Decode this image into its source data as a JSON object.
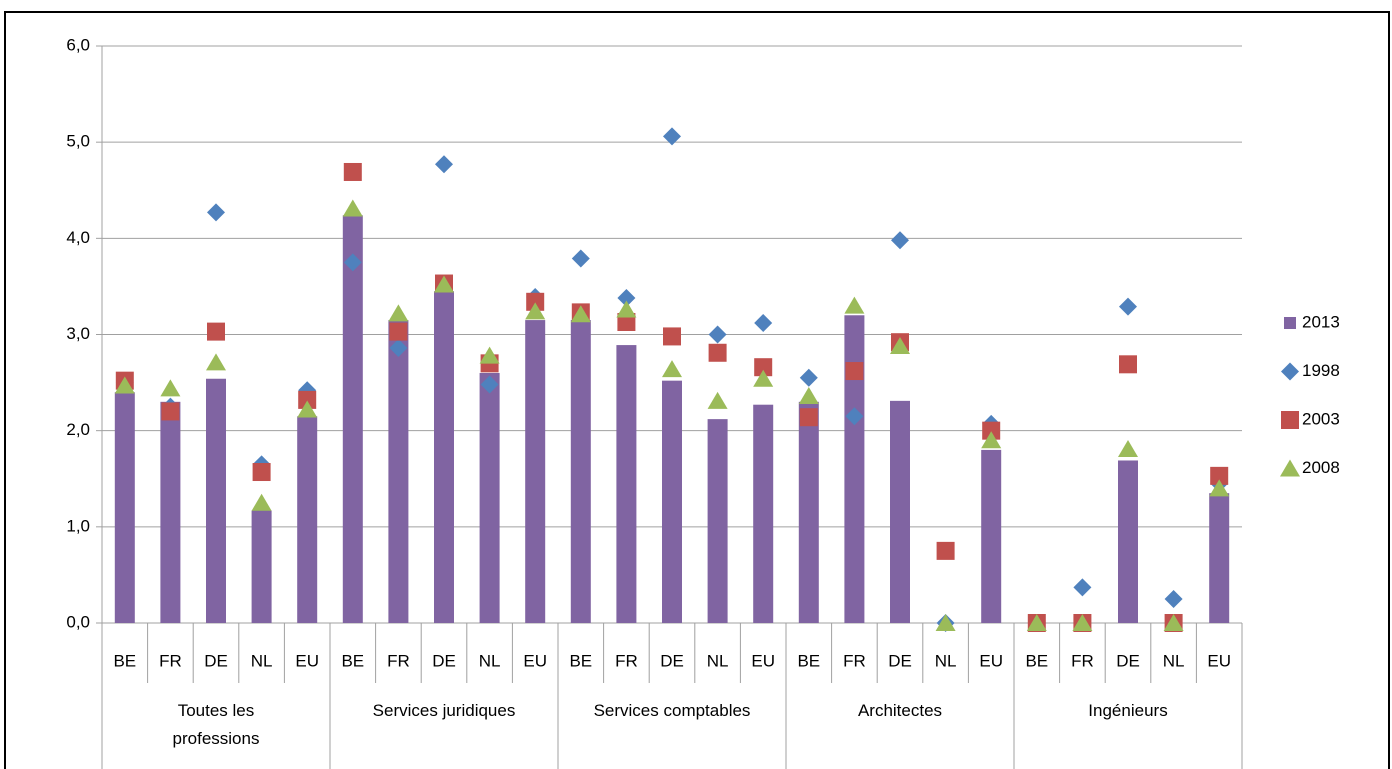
{
  "chart_data": {
    "type": "bar",
    "categories": [
      "BE",
      "FR",
      "DE",
      "NL",
      "EU",
      "BE",
      "FR",
      "DE",
      "NL",
      "EU",
      "BE",
      "FR",
      "DE",
      "NL",
      "EU",
      "BE",
      "FR",
      "DE",
      "NL",
      "EU",
      "BE",
      "FR",
      "DE",
      "NL",
      "EU"
    ],
    "groups": [
      {
        "name": "Toutes les professions",
        "size": 5
      },
      {
        "name": "Services juridiques",
        "size": 5
      },
      {
        "name": "Services comptables",
        "size": 5
      },
      {
        "name": "Architectes",
        "size": 5
      },
      {
        "name": "Ingénieurs",
        "size": 5
      }
    ],
    "series": [
      {
        "name": "2013",
        "type": "bar",
        "color": "#8064a2",
        "values": [
          2.4,
          2.3,
          2.54,
          1.17,
          2.15,
          4.24,
          3.15,
          3.45,
          2.6,
          3.15,
          3.15,
          2.89,
          2.52,
          2.12,
          2.27,
          2.3,
          3.2,
          2.31,
          0,
          1.8,
          0,
          0,
          1.69,
          0,
          1.35
        ]
      },
      {
        "name": "1998",
        "type": "scatter",
        "marker": "diamond",
        "color": "#4f81bd",
        "values": [
          2.5,
          2.25,
          4.27,
          1.65,
          2.42,
          3.75,
          2.86,
          4.77,
          2.48,
          3.39,
          3.79,
          3.38,
          5.06,
          3.0,
          3.12,
          2.55,
          2.15,
          3.98,
          0,
          2.07,
          0,
          0.37,
          3.29,
          0.25,
          1.45
        ]
      },
      {
        "name": "2003",
        "type": "scatter",
        "marker": "square",
        "color": "#c0504d",
        "values": [
          2.52,
          2.2,
          3.03,
          1.57,
          2.32,
          4.69,
          3.03,
          3.53,
          2.7,
          3.34,
          3.23,
          3.13,
          2.98,
          2.81,
          2.66,
          2.14,
          2.62,
          2.92,
          0.75,
          2.0,
          0,
          0,
          2.69,
          0,
          1.53
        ]
      },
      {
        "name": "2008",
        "type": "scatter",
        "marker": "triangle",
        "color": "#9bbb59",
        "values": [
          2.47,
          2.44,
          2.71,
          1.25,
          2.22,
          4.31,
          3.22,
          3.52,
          2.78,
          3.24,
          3.21,
          3.26,
          2.64,
          2.31,
          2.54,
          2.36,
          3.3,
          2.88,
          0,
          1.9,
          0,
          0,
          1.81,
          0,
          1.4
        ]
      }
    ],
    "ylim": [
      0,
      6
    ],
    "yticks": [
      {
        "value": 0,
        "label": "0,0"
      },
      {
        "value": 1,
        "label": "1,0"
      },
      {
        "value": 2,
        "label": "2,0"
      },
      {
        "value": 3,
        "label": "3,0"
      },
      {
        "value": 4,
        "label": "4,0"
      },
      {
        "value": 5,
        "label": "5,0"
      },
      {
        "value": 6,
        "label": "6,0"
      }
    ],
    "grid": true,
    "legend": "right"
  }
}
